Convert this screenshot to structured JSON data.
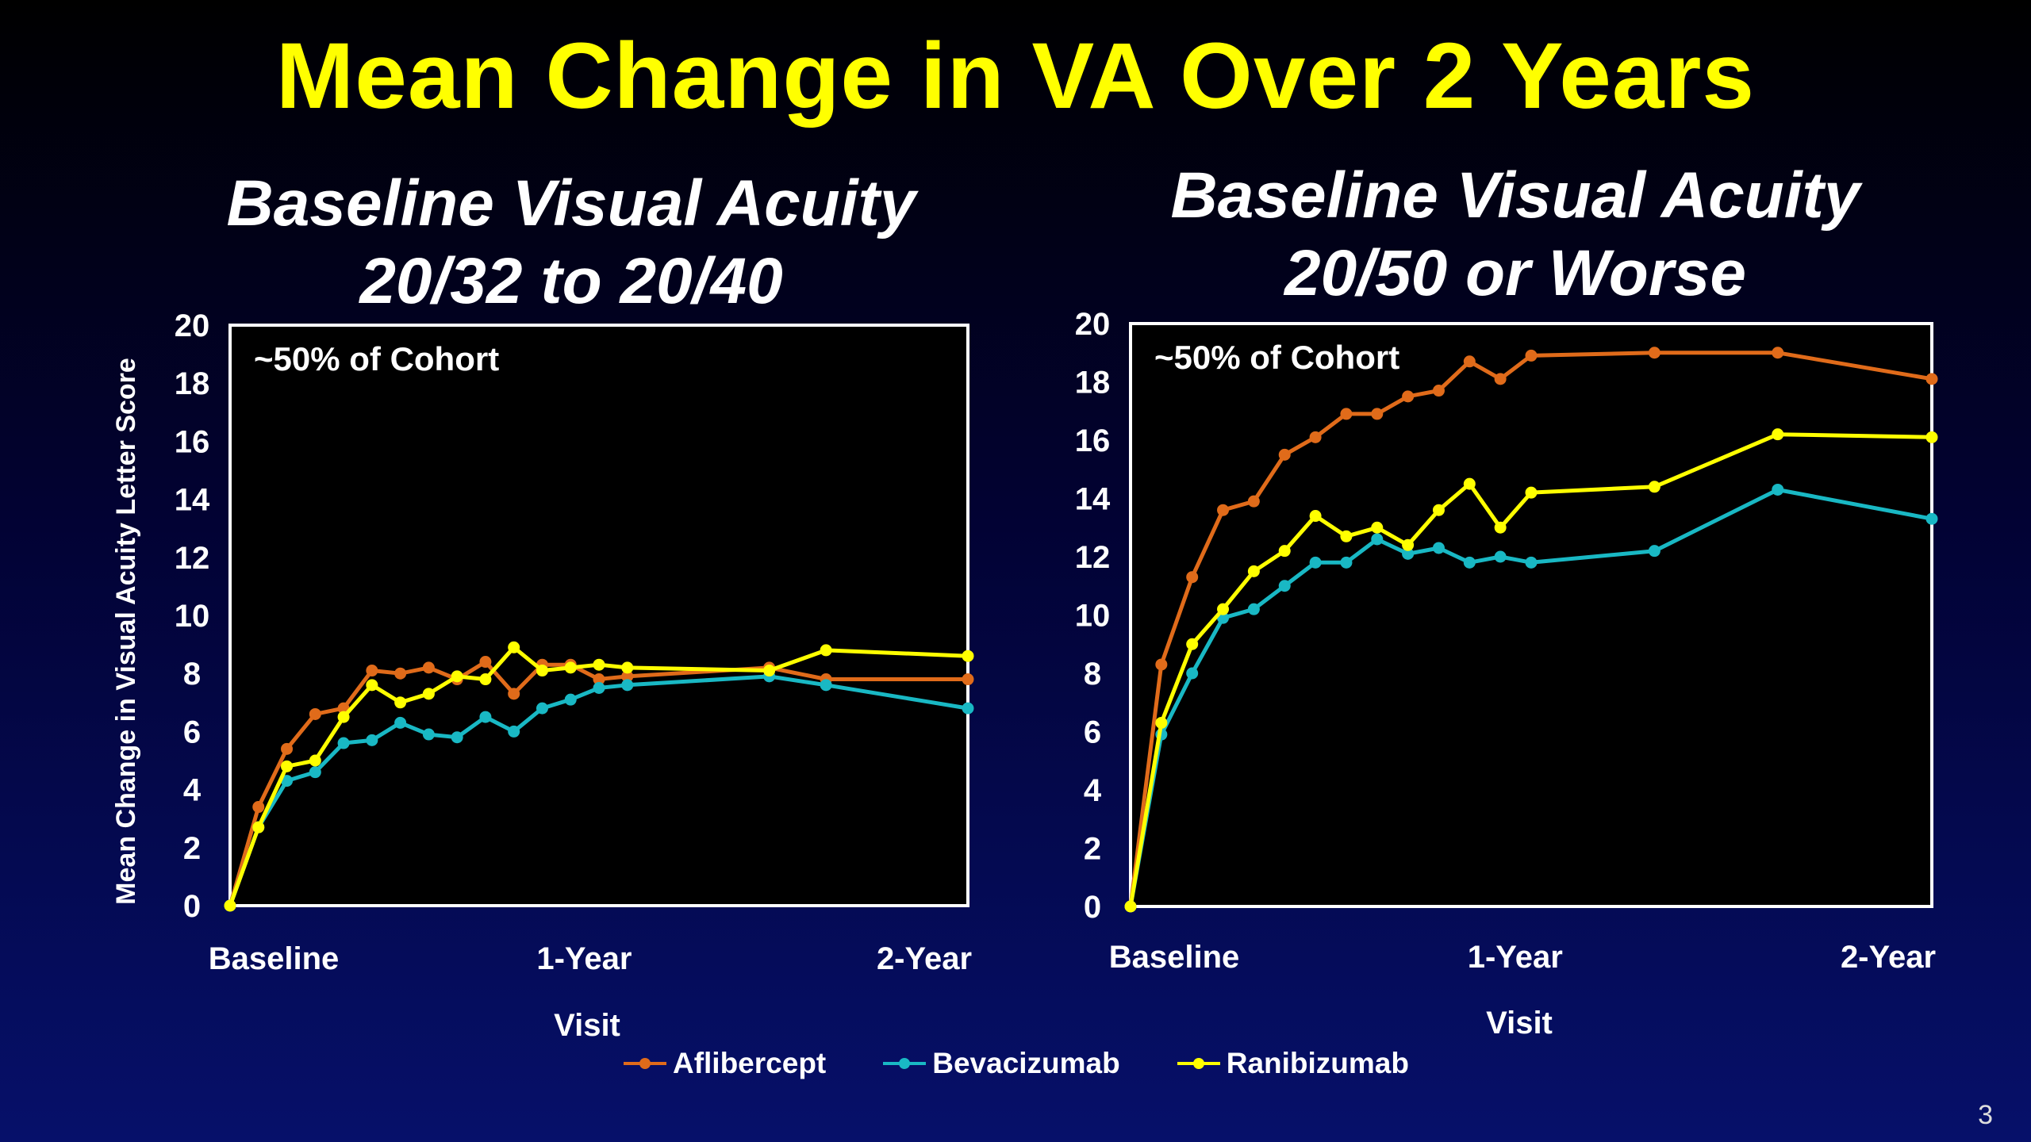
{
  "title": "Mean Change in VA Over 2 Years",
  "page_number": "3",
  "colors": {
    "aflibercept": "#e06b1a",
    "bevacizumab": "#19b8c4",
    "ranibizumab": "#ffff00",
    "background": "#000000",
    "frame": "#ffffff"
  },
  "legend": [
    {
      "name": "Aflibercept",
      "color": "#e06b1a"
    },
    {
      "name": "Bevacizumab",
      "color": "#19b8c4"
    },
    {
      "name": "Ranibizumab",
      "color": "#ffff00"
    }
  ],
  "chart_data": [
    {
      "type": "line",
      "title_line1": "Baseline Visual Acuity",
      "title_line2": "20/32 to 20/40",
      "annotation": "~50% of Cohort",
      "ylabel": "Mean Change in Visual Acuity Letter Score",
      "xlabel": "Visit",
      "x_tick_labels": [
        "Baseline",
        "1-Year",
        "2-Year"
      ],
      "y_ticks": [
        "0",
        "2",
        "4",
        "6",
        "8",
        "10",
        "12",
        "14",
        "16",
        "18",
        "20"
      ],
      "ylim": [
        0,
        20
      ],
      "x_range": [
        0,
        104
      ],
      "grid": false,
      "series": [
        {
          "name": "Aflibercept",
          "color": "#e06b1a",
          "x": [
            0,
            4,
            8,
            12,
            16,
            20,
            24,
            28,
            32,
            36,
            40,
            44,
            48,
            52,
            56,
            76,
            84,
            104
          ],
          "y": [
            0,
            3.4,
            5.4,
            6.6,
            6.8,
            8.1,
            8.0,
            8.2,
            7.8,
            8.4,
            7.3,
            8.3,
            8.3,
            7.8,
            7.9,
            8.2,
            7.8,
            7.8
          ]
        },
        {
          "name": "Bevacizumab",
          "color": "#19b8c4",
          "x": [
            0,
            4,
            8,
            12,
            16,
            20,
            24,
            28,
            32,
            36,
            40,
            44,
            48,
            52,
            56,
            76,
            84,
            104
          ],
          "y": [
            0,
            2.7,
            4.3,
            4.6,
            5.6,
            5.7,
            6.3,
            5.9,
            5.8,
            6.5,
            6.0,
            6.8,
            7.1,
            7.5,
            7.6,
            7.9,
            7.6,
            6.8
          ]
        },
        {
          "name": "Ranibizumab",
          "color": "#ffff00",
          "x": [
            0,
            4,
            8,
            12,
            16,
            20,
            24,
            28,
            32,
            36,
            40,
            44,
            48,
            52,
            56,
            76,
            84,
            104
          ],
          "y": [
            0,
            2.7,
            4.8,
            5.0,
            6.5,
            7.6,
            7.0,
            7.3,
            7.9,
            7.8,
            8.9,
            8.1,
            8.2,
            8.3,
            8.2,
            8.1,
            8.8,
            8.6
          ]
        }
      ]
    },
    {
      "type": "line",
      "title_line1": "Baseline Visual Acuity",
      "title_line2": "20/50 or Worse",
      "annotation": "~50% of Cohort",
      "ylabel": "",
      "xlabel": "Visit",
      "x_tick_labels": [
        "Baseline",
        "1-Year",
        "2-Year"
      ],
      "y_ticks": [
        "0",
        "2",
        "4",
        "6",
        "8",
        "10",
        "12",
        "14",
        "16",
        "18",
        "20"
      ],
      "ylim": [
        0,
        20
      ],
      "x_range": [
        0,
        104
      ],
      "grid": false,
      "series": [
        {
          "name": "Aflibercept",
          "color": "#e06b1a",
          "x": [
            0,
            4,
            8,
            12,
            16,
            20,
            24,
            28,
            32,
            36,
            40,
            44,
            48,
            52,
            68,
            84,
            104
          ],
          "y": [
            0,
            8.3,
            11.3,
            13.6,
            13.9,
            15.5,
            16.1,
            16.9,
            16.9,
            17.5,
            17.7,
            18.7,
            18.1,
            18.9,
            19.0,
            19.0,
            18.1
          ]
        },
        {
          "name": "Bevacizumab",
          "color": "#19b8c4",
          "x": [
            0,
            4,
            8,
            12,
            16,
            20,
            24,
            28,
            32,
            36,
            40,
            44,
            48,
            52,
            68,
            84,
            104
          ],
          "y": [
            0,
            5.9,
            8.0,
            9.9,
            10.2,
            11.0,
            11.8,
            11.8,
            12.6,
            12.1,
            12.3,
            11.8,
            12.0,
            11.8,
            12.2,
            14.3,
            13.3
          ]
        },
        {
          "name": "Ranibizumab",
          "color": "#ffff00",
          "x": [
            0,
            4,
            8,
            12,
            16,
            20,
            24,
            28,
            32,
            36,
            40,
            44,
            48,
            52,
            68,
            84,
            104
          ],
          "y": [
            0,
            6.3,
            9.0,
            10.2,
            11.5,
            12.2,
            13.4,
            12.7,
            13.0,
            12.4,
            13.6,
            14.5,
            13.0,
            14.2,
            14.4,
            16.2,
            16.1
          ]
        }
      ]
    }
  ]
}
